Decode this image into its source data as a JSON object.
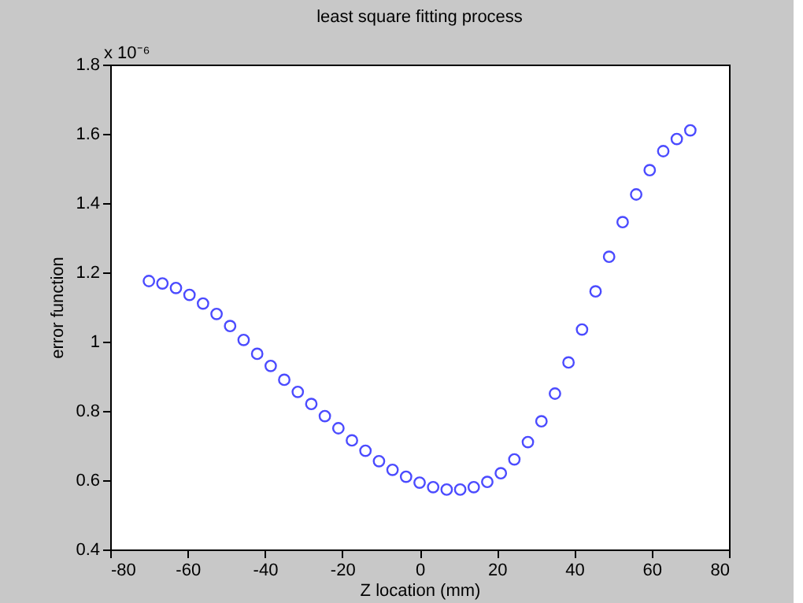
{
  "chart_data": {
    "type": "scatter",
    "title": "least square fitting process",
    "xlabel": "Z location (mm)",
    "ylabel": "error function",
    "annotations": [
      "x 10⁻⁶"
    ],
    "x": [
      -70,
      -66.5,
      -63,
      -59.5,
      -56,
      -52.5,
      -49,
      -45.5,
      -42,
      -38.5,
      -35,
      -31.5,
      -28,
      -24.5,
      -21,
      -17.5,
      -14,
      -10.5,
      -7,
      -3.5,
      0,
      3.5,
      7,
      10.5,
      14,
      17.5,
      21,
      24.5,
      28,
      31.5,
      35,
      38.5,
      42,
      45.5,
      49,
      52.5,
      56,
      59.5,
      63,
      66.5,
      70
    ],
    "series": [
      {
        "color": "#0000ff",
        "values": [
          1.175,
          1.168,
          1.155,
          1.135,
          1.11,
          1.08,
          1.045,
          1.005,
          0.965,
          0.93,
          0.89,
          0.855,
          0.82,
          0.785,
          0.75,
          0.715,
          0.685,
          0.655,
          0.63,
          0.61,
          0.593,
          0.58,
          0.573,
          0.573,
          0.58,
          0.595,
          0.62,
          0.66,
          0.71,
          0.77,
          0.85,
          0.94,
          1.035,
          1.145,
          1.245,
          1.345,
          1.425,
          1.495,
          1.55,
          1.585,
          1.61
        ]
      }
    ],
    "xlim": [
      -80,
      80
    ],
    "xticks": [
      -80,
      -60,
      -40,
      -20,
      0,
      20,
      40,
      60,
      80
    ],
    "ylim": [
      0.4,
      1.8
    ],
    "yticks": [
      0.4,
      0.6,
      0.8,
      1,
      1.2,
      1.4,
      1.6,
      1.8
    ],
    "grid": false,
    "marker": "circle"
  }
}
